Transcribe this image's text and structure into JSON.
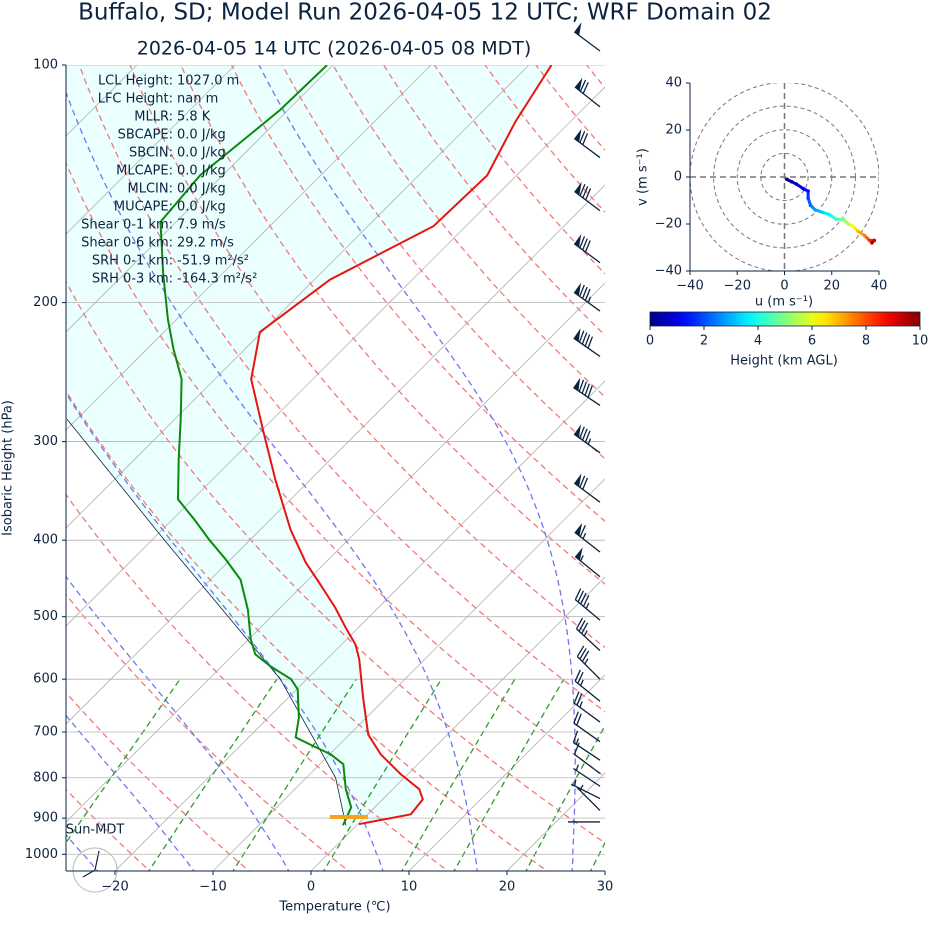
{
  "chart_data": [
    {
      "type": "skewt",
      "title": "Buffalo, SD; Model Run 2026-04-05 12 UTC; WRF Domain 02",
      "subtitle": "2026-04-05 14 UTC  (2026-04-05 08 MDT)",
      "xlabel": "Temperature (℃)",
      "ylabel": "Isobaric Height (hPa)",
      "xlim": [
        -25,
        30
      ],
      "ylim": [
        1050,
        100
      ],
      "log_y": true,
      "grid": true,
      "xticks": [
        {
          "value": -20,
          "label": "−20"
        },
        {
          "value": -10,
          "label": "−10"
        },
        0,
        10,
        20,
        30
      ],
      "yticks": [
        100,
        200,
        300,
        400,
        500,
        600,
        700,
        800,
        900,
        1000
      ],
      "temperature": {
        "color": "#e8140e",
        "pressure": [
          916,
          890,
          852,
          827,
          792,
          747,
          705,
          636,
          566,
          542,
          519,
          487,
          455,
          427,
          388,
          335,
          290,
          250,
          218,
          187,
          160,
          138,
          118,
          100
        ],
        "values": [
          0.1,
          4.4,
          4.1,
          2.7,
          -0.7,
          -4.8,
          -8.1,
          -12.2,
          -16.7,
          -18.6,
          -21.0,
          -24.4,
          -28.3,
          -32.0,
          -36.9,
          -43.6,
          -49.9,
          -56.3,
          -60.2,
          -58.4,
          -53.3,
          -53.0,
          -55.6,
          -57.7
        ]
      },
      "dewpoint": {
        "color": "#0a8a0a",
        "pressure": [
          919,
          872,
          827,
          769,
          747,
          726,
          711,
          671,
          618,
          600,
          578,
          558,
          534,
          490,
          449,
          423,
          400,
          377,
          355,
          316,
          281,
          250,
          229,
          210,
          184,
          158,
          138,
          114,
          100
        ],
        "values": [
          -1.4,
          -2.4,
          -4.8,
          -7.6,
          -9.9,
          -13.0,
          -15.2,
          -16.9,
          -19.9,
          -21.6,
          -25.0,
          -27.8,
          -29.8,
          -33.1,
          -36.9,
          -40.5,
          -44.1,
          -47.7,
          -51.5,
          -55.5,
          -59.4,
          -63.4,
          -67.3,
          -70.9,
          -76.0,
          -81.6,
          -82.3,
          -80.8,
          -80.6
        ]
      },
      "parcel": {
        "color": "#0c2340",
        "pressure": [
          919,
          800,
          600,
          400,
          281
        ],
        "values": [
          -1.1,
          -7.0,
          -22.7,
          -48.7,
          -71.0
        ]
      },
      "fill_color": "#ebfffe",
      "lcl_marker": {
        "pressure": 897,
        "temperature": [
          -3.6,
          0.3
        ],
        "color": "#f5a51c"
      },
      "barbs": {
        "color": "#0c2340",
        "pressure": [
          96,
          113,
          131,
          153,
          178,
          205,
          234,
          270,
          310,
          358,
          414,
          445,
          505,
          552,
          600,
          640,
          680,
          720,
          760,
          790,
          820,
          850,
          880,
          910
        ],
        "u": [
          39,
          54,
          58,
          62,
          64,
          68,
          72,
          74,
          68,
          58,
          50,
          43,
          35,
          27,
          23,
          21,
          19,
          17,
          12,
          8,
          6,
          4,
          2,
          1
        ],
        "v": [
          -29,
          -43,
          -43,
          -47,
          -47,
          -49,
          -50,
          -50,
          -49,
          -43,
          -39,
          -35,
          -29,
          -25,
          -23,
          -17,
          -14,
          -12,
          -8,
          -6,
          -4,
          -2,
          -2,
          0
        ]
      },
      "indices": [
        {
          "label": "LCL Height:",
          "value": "1027.0 m"
        },
        {
          "label": "LFC Height:",
          "value": "nan m"
        },
        {
          "label": "MLLR:",
          "value": "5.8 K"
        },
        {
          "label": "SBCAPE:",
          "value": "0.0 J/kg"
        },
        {
          "label": "SBCIN:",
          "value": "0.0 J/kg"
        },
        {
          "label": "MLCAPE:",
          "value": "0.0 J/kg"
        },
        {
          "label": "MLCIN:",
          "value": "0.0 J/kg"
        },
        {
          "label": "MUCAPE:",
          "value": "0.0 J/kg"
        },
        {
          "label": "Shear 0-1 km:",
          "value": "7.9 m/s"
        },
        {
          "label": "Shear 0-6 km:",
          "value": "29.2 m/s"
        },
        {
          "label": "SRH 0-1 km:",
          "value": "-51.9 m²/s²"
        },
        {
          "label": "SRH 0-3 km:",
          "value": "-164.3 m²/s²"
        }
      ],
      "clock_label": "Sun-MDT"
    },
    {
      "type": "hodograph",
      "xlabel": "u (m s⁻¹)",
      "ylabel": "v (m s⁻¹)",
      "xlim": [
        -40,
        40
      ],
      "ylim": [
        -40,
        40
      ],
      "xticks": [
        {
          "value": -40,
          "label": "−40"
        },
        {
          "value": -20,
          "label": "−20"
        },
        0,
        20,
        40
      ],
      "yticks": [
        {
          "value": -40,
          "label": "−40"
        },
        {
          "value": -20,
          "label": "−20"
        },
        0,
        20,
        40
      ],
      "rings": [
        10,
        20,
        30,
        40
      ],
      "u": [
        1,
        3,
        5,
        8,
        10,
        10,
        11,
        13,
        16,
        19,
        22,
        25,
        27,
        29,
        31,
        34,
        36,
        38,
        37
      ],
      "v": [
        -1,
        -2,
        -3,
        -5,
        -6,
        -9,
        -12,
        -14,
        -15,
        -16,
        -18,
        -18,
        -20,
        -21,
        -23,
        -25,
        -27,
        -27,
        -28
      ],
      "height": [
        0.1,
        0.4,
        0.7,
        1.1,
        1.5,
        1.9,
        2.3,
        2.8,
        3.3,
        3.8,
        4.4,
        5.0,
        5.6,
        6.2,
        6.8,
        7.5,
        8.3,
        9.0,
        9.7
      ],
      "colormap": "jet",
      "colorbar": {
        "label": "Height (km AGL)",
        "clim": [
          0,
          10
        ],
        "ticks": [
          0,
          2,
          4,
          6,
          8,
          10
        ]
      }
    }
  ]
}
